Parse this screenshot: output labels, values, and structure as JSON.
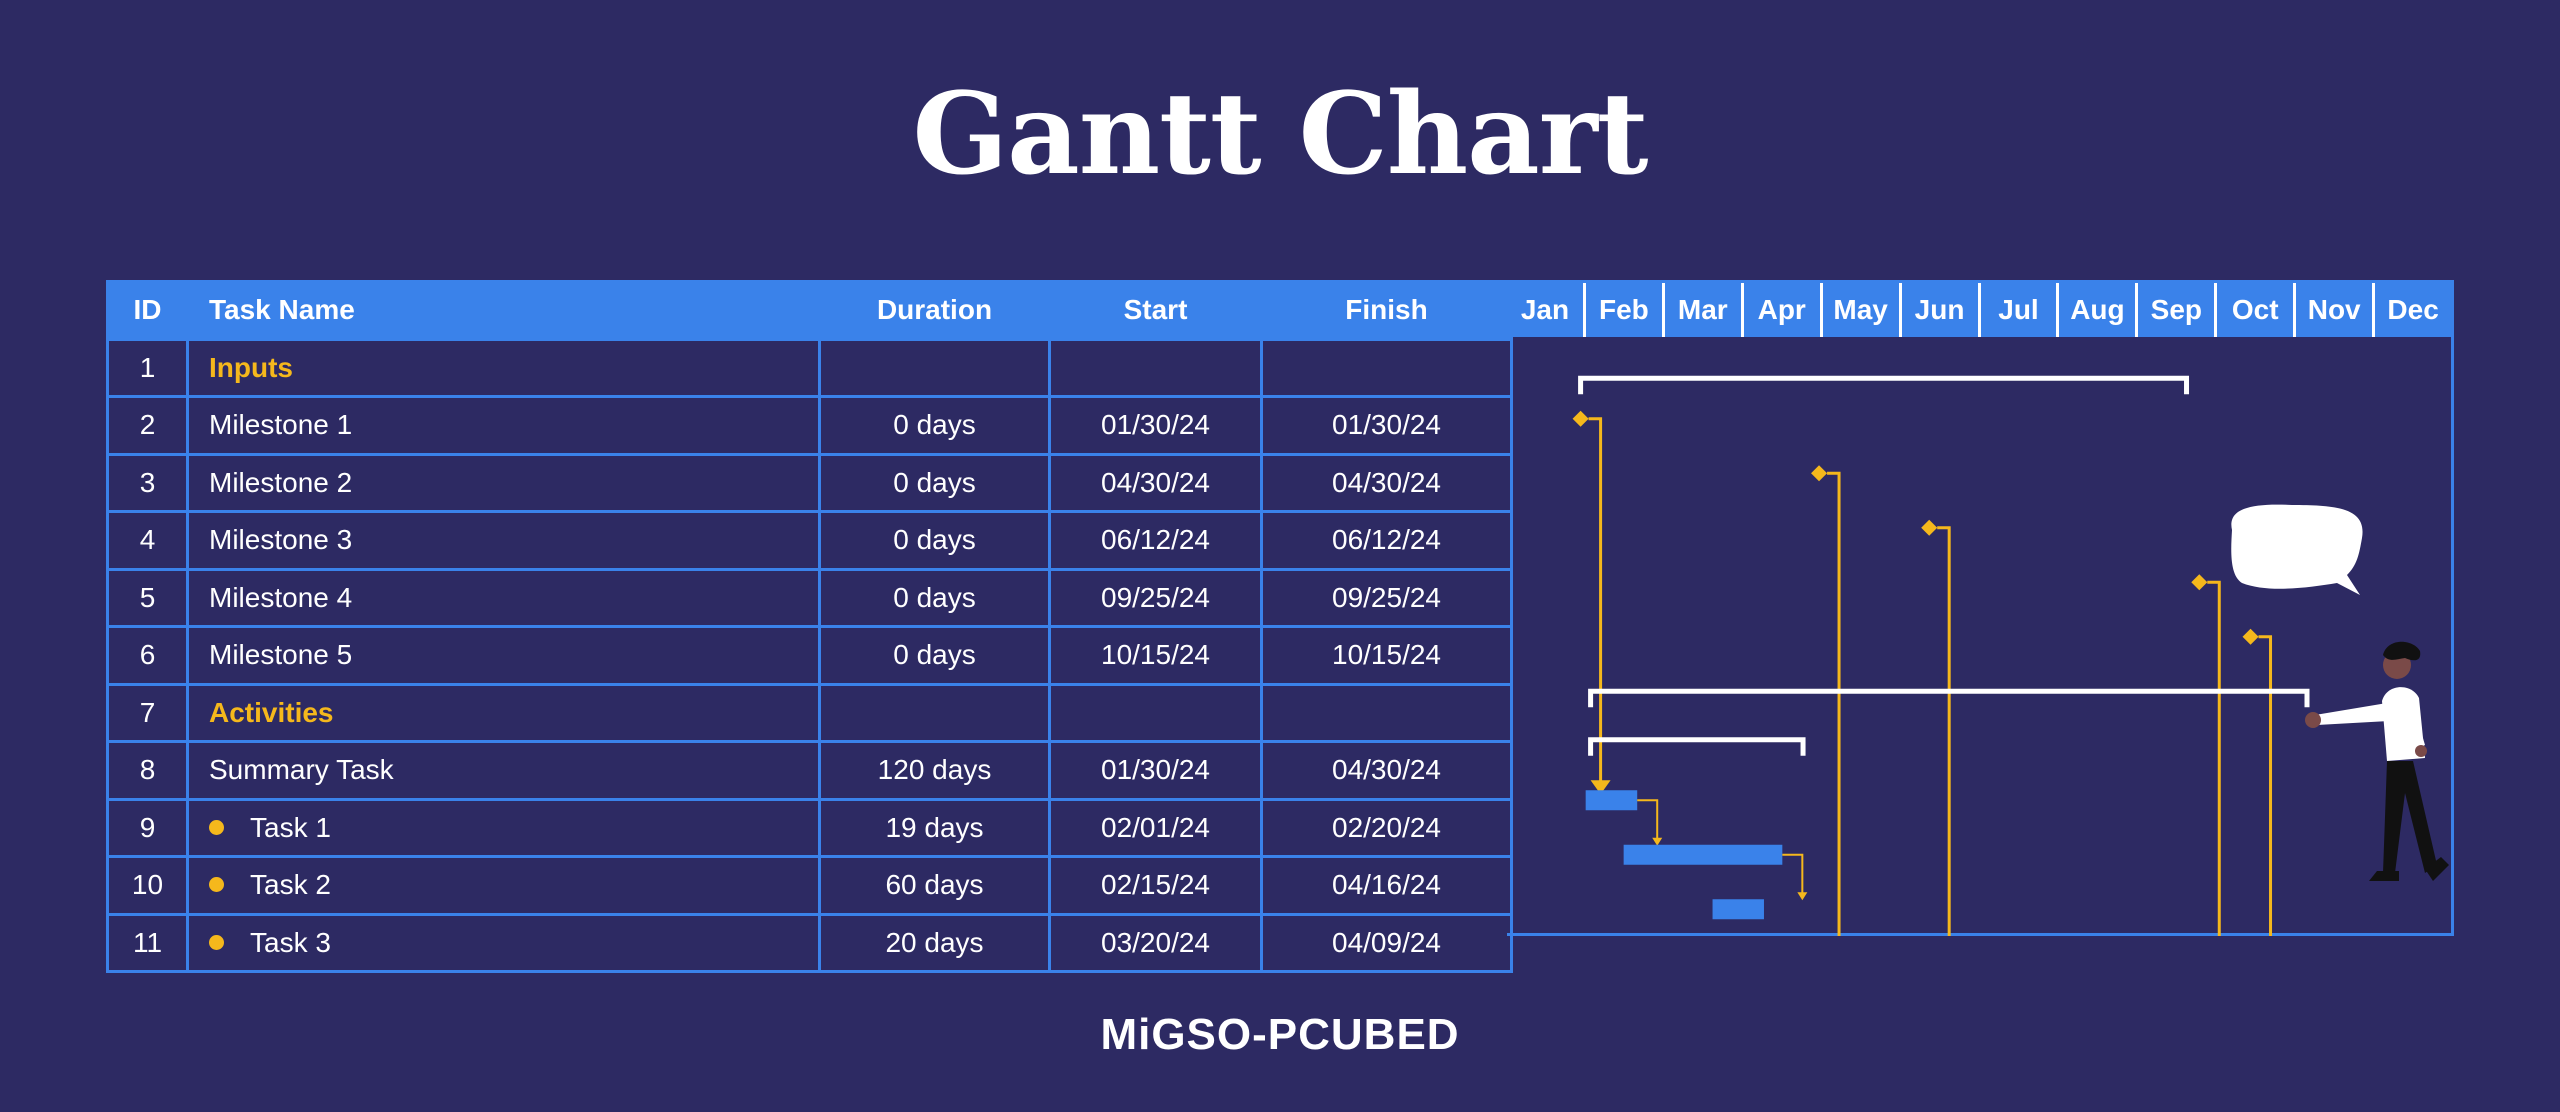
{
  "title": "Gantt Chart",
  "logo": "MiGSO-PCUBED",
  "colors": {
    "background": "#2d2a63",
    "header": "#3a82ea",
    "accent": "#f5b81c",
    "bar": "#3a82ea"
  },
  "chart_data": {
    "type": "table",
    "columns": [
      "ID",
      "Task Name",
      "Duration",
      "Start",
      "Finish"
    ],
    "months": [
      "Jan",
      "Feb",
      "Mar",
      "Apr",
      "May",
      "Jun",
      "Jul",
      "Aug",
      "Sep",
      "Oct",
      "Nov",
      "Dec"
    ],
    "rows": [
      {
        "id": "1",
        "name": "Inputs",
        "duration": "",
        "start": "",
        "finish": "",
        "kind": "section"
      },
      {
        "id": "2",
        "name": "Milestone 1",
        "duration": "0 days",
        "start": "01/30/24",
        "finish": "01/30/24",
        "kind": "milestone"
      },
      {
        "id": "3",
        "name": "Milestone 2",
        "duration": "0 days",
        "start": "04/30/24",
        "finish": "04/30/24",
        "kind": "milestone"
      },
      {
        "id": "4",
        "name": "Milestone 3",
        "duration": "0 days",
        "start": "06/12/24",
        "finish": "06/12/24",
        "kind": "milestone"
      },
      {
        "id": "5",
        "name": "Milestone 4",
        "duration": "0 days",
        "start": "09/25/24",
        "finish": "09/25/24",
        "kind": "milestone"
      },
      {
        "id": "6",
        "name": "Milestone 5",
        "duration": "0 days",
        "start": "10/15/24",
        "finish": "10/15/24",
        "kind": "milestone"
      },
      {
        "id": "7",
        "name": "Activities",
        "duration": "",
        "start": "",
        "finish": "",
        "kind": "section"
      },
      {
        "id": "8",
        "name": "Summary Task",
        "duration": "120 days",
        "start": "01/30/24",
        "finish": "04/30/24",
        "kind": "summary"
      },
      {
        "id": "9",
        "name": "Task 1",
        "duration": "19 days",
        "start": "02/01/24",
        "finish": "02/20/24",
        "kind": "task"
      },
      {
        "id": "10",
        "name": "Task 2",
        "duration": "60 days",
        "start": "02/15/24",
        "finish": "04/16/24",
        "kind": "task"
      },
      {
        "id": "11",
        "name": "Task 3",
        "duration": "20 days",
        "start": "03/20/24",
        "finish": "04/09/24",
        "kind": "task"
      }
    ]
  }
}
